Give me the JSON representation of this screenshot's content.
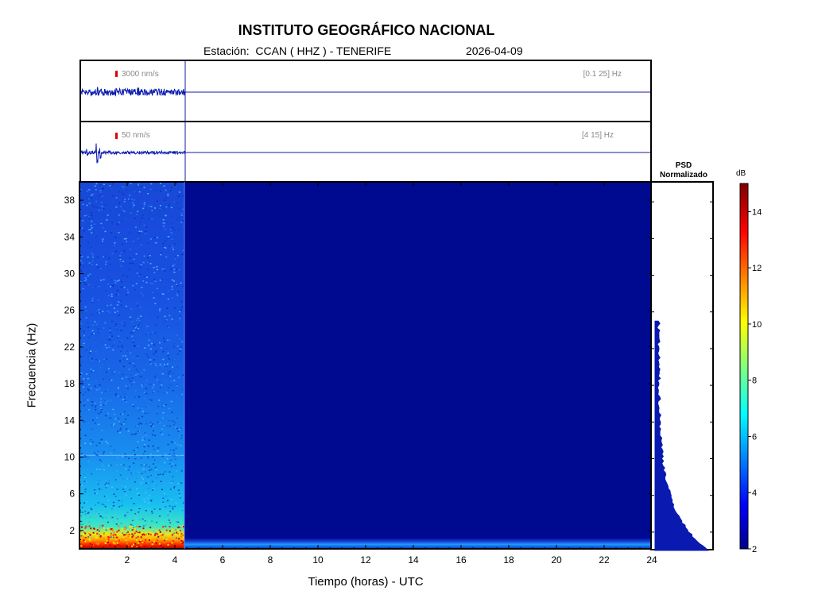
{
  "chart_data": {
    "type": "heatmap",
    "title": "INSTITUTO GEOGRÁFICO NACIONAL",
    "subtitle_station": "Estación:  CCAN ( HHZ ) - TENERIFE",
    "subtitle_date": "2026-04-09",
    "xlabel": "Tiempo (horas) - UTC",
    "ylabel": "Frecuencia  (Hz)",
    "xlim": [
      0,
      24
    ],
    "ylim": [
      0,
      40
    ],
    "x_ticks": [
      2,
      4,
      6,
      8,
      10,
      12,
      14,
      16,
      18,
      20,
      22,
      24
    ],
    "y_ticks": [
      2,
      6,
      10,
      14,
      18,
      22,
      26,
      30,
      34,
      38
    ],
    "data_end_hour": 4.4,
    "traces": [
      {
        "scale_label": "3000 nm/s",
        "band_label": "[0.1 25] Hz"
      },
      {
        "scale_label": "50 nm/s",
        "band_label": "[4 15] Hz"
      }
    ],
    "psd_title_line1": "PSD",
    "psd_title_line2": "Normalizado",
    "colorbar": {
      "unit": "dB",
      "range": [
        2,
        15
      ],
      "ticks": [
        2,
        4,
        6,
        8,
        10,
        12,
        14
      ]
    }
  }
}
